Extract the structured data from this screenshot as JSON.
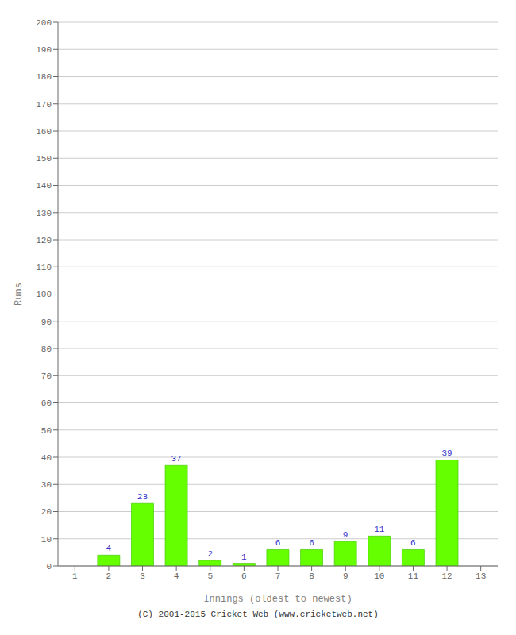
{
  "chart_data": {
    "type": "bar",
    "categories": [
      "1",
      "2",
      "3",
      "4",
      "5",
      "6",
      "7",
      "8",
      "9",
      "10",
      "11",
      "12",
      "13"
    ],
    "values": [
      0,
      4,
      23,
      37,
      2,
      1,
      6,
      6,
      9,
      11,
      6,
      39,
      0
    ],
    "color": "#66ff00",
    "x_label": "Innings (oldest to newest)",
    "y_label": "Runs",
    "ylim": [
      0,
      200
    ],
    "yticks": [
      0,
      10,
      20,
      30,
      40,
      50,
      60,
      70,
      80,
      90,
      100,
      110,
      120,
      130,
      140,
      150,
      160,
      170,
      180,
      190,
      200
    ],
    "grid": true,
    "data_labels": true,
    "annotations": [
      "(C) 2001-2015 Cricket Web (www.cricketweb.net)"
    ]
  }
}
